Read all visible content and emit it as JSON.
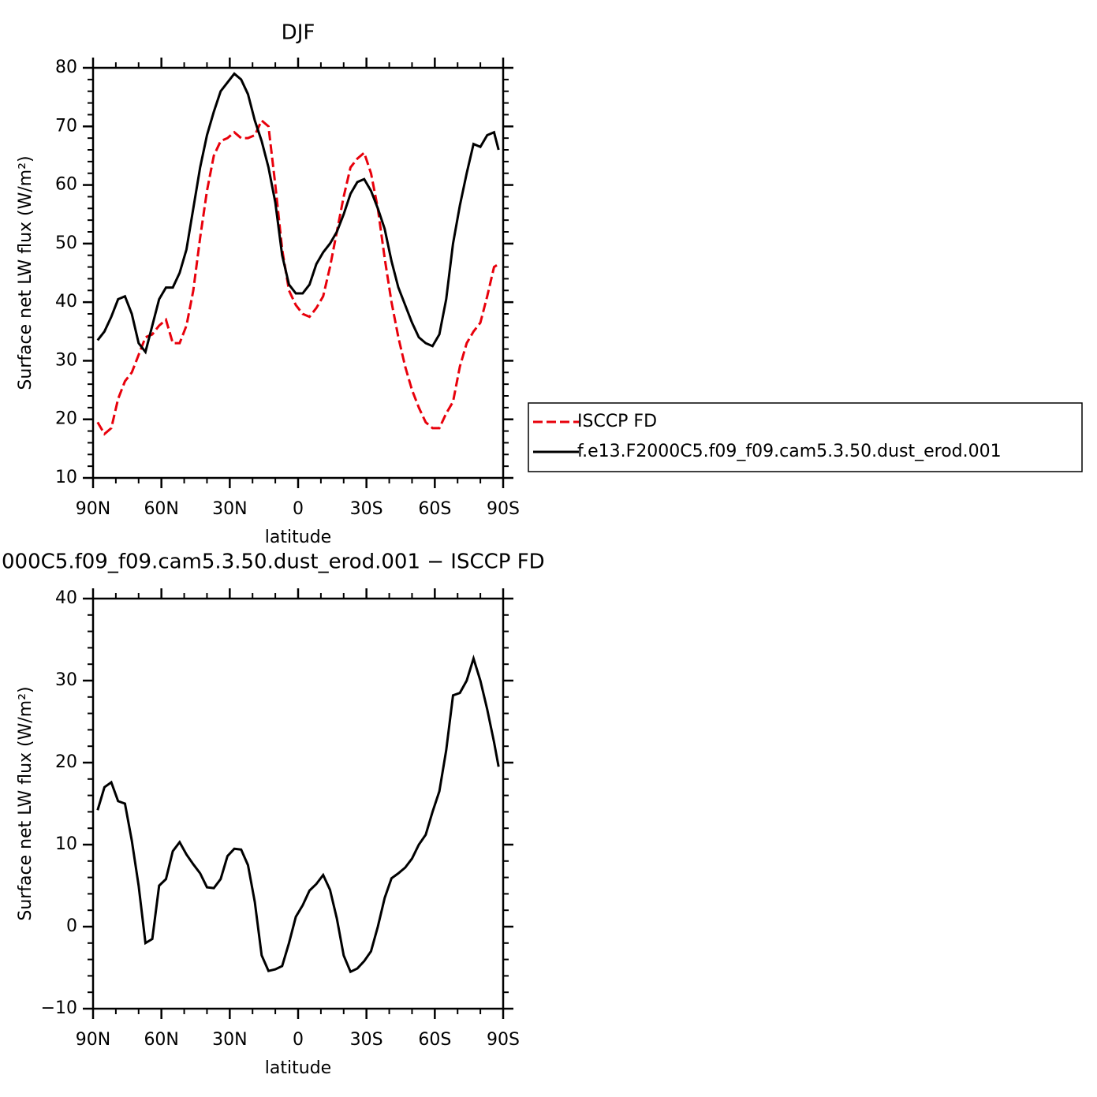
{
  "chart_data": [
    {
      "type": "line",
      "title": "DJF",
      "xlabel": "latitude",
      "ylabel": "Surface net LW flux (W/m²)",
      "x": [
        88,
        85,
        82,
        79,
        76,
        73,
        70,
        67,
        64,
        61,
        58,
        55,
        52,
        49,
        46,
        43,
        40,
        37,
        34,
        31,
        28,
        25,
        22,
        19,
        16,
        13,
        10,
        7,
        4,
        1,
        -2,
        -5,
        -8,
        -11,
        -14,
        -17,
        -20,
        -23,
        -26,
        -29,
        -32,
        -35,
        -38,
        -41,
        -44,
        -47,
        -50,
        -53,
        -56,
        -59,
        -62,
        -65,
        -68,
        -71,
        -74,
        -77,
        -80,
        -83,
        -86,
        -88
      ],
      "xlim": [
        90,
        -90
      ],
      "xticks": [
        {
          "value": 90,
          "label": "90N"
        },
        {
          "value": 60,
          "label": "60N"
        },
        {
          "value": 30,
          "label": "30N"
        },
        0,
        {
          "value": -30,
          "label": "30S"
        },
        {
          "value": -60,
          "label": "60S"
        },
        {
          "value": -90,
          "label": "90S"
        }
      ],
      "ylim": [
        10,
        80
      ],
      "yticks": [
        10,
        20,
        30,
        40,
        50,
        60,
        70,
        80
      ],
      "legend": "right",
      "series": [
        {
          "name": "ISCCP FD",
          "color": "#e8000b",
          "dashed": true,
          "values": [
            19.5,
            17.5,
            18.5,
            23.5,
            26.5,
            28,
            31,
            34,
            34.5,
            36,
            37,
            33,
            33,
            36,
            42,
            51,
            59,
            65,
            67.5,
            68,
            69,
            68,
            68,
            68.5,
            71,
            70,
            60,
            49,
            42,
            39.5,
            38,
            37.5,
            39,
            41,
            46,
            52,
            58,
            63,
            64.5,
            65.5,
            62,
            56,
            47.5,
            40,
            34,
            29,
            25,
            22,
            19.5,
            18.5,
            18.5,
            21,
            23,
            29,
            33,
            35,
            36.5,
            41,
            46,
            46.5
          ]
        },
        {
          "name": "f.e13.F2000C5.f09_f09.cam5.3.50.dust_erod.001",
          "color": "#000000",
          "dashed": false,
          "values": [
            33.5,
            35,
            37.5,
            40.5,
            41,
            38,
            33,
            31.5,
            36,
            40.5,
            42.5,
            42.5,
            45,
            49,
            56,
            63,
            68.5,
            72.5,
            76,
            77.5,
            79,
            78,
            75.5,
            71,
            67.5,
            63,
            57,
            48,
            43,
            41.5,
            41.5,
            43,
            46.5,
            48.5,
            50,
            52,
            55,
            58.5,
            60.5,
            61,
            59,
            56,
            52.5,
            47,
            42.5,
            39.5,
            36.5,
            34,
            33,
            32.5,
            34.5,
            40.5,
            50,
            56.5,
            62,
            67,
            66.5,
            68.5,
            69,
            66
          ]
        }
      ]
    },
    {
      "type": "line",
      "title": "000C5.f09_f09.cam5.3.50.dust_erod.001 − ISCCP FD",
      "xlabel": "latitude",
      "ylabel": "Surface net LW flux (W/m²)",
      "x": [
        88,
        85,
        82,
        79,
        76,
        73,
        70,
        67,
        64,
        61,
        58,
        55,
        52,
        49,
        46,
        43,
        40,
        37,
        34,
        31,
        28,
        25,
        22,
        19,
        16,
        13,
        10,
        7,
        4,
        1,
        -2,
        -5,
        -8,
        -11,
        -14,
        -17,
        -20,
        -23,
        -26,
        -29,
        -32,
        -35,
        -38,
        -41,
        -44,
        -47,
        -50,
        -53,
        -56,
        -59,
        -62,
        -65,
        -68,
        -71,
        -74,
        -77,
        -80,
        -83,
        -86,
        -88
      ],
      "xlim": [
        90,
        -90
      ],
      "xticks": [
        {
          "value": 90,
          "label": "90N"
        },
        {
          "value": 60,
          "label": "60N"
        },
        {
          "value": 30,
          "label": "30N"
        },
        0,
        {
          "value": -30,
          "label": "30S"
        },
        {
          "value": -60,
          "label": "60S"
        },
        {
          "value": -90,
          "label": "90S"
        }
      ],
      "ylim": [
        -10,
        40
      ],
      "yticks": [
        {
          "value": -10,
          "label": "−10"
        },
        0,
        10,
        20,
        30,
        40
      ],
      "series": [
        {
          "color": "#000000",
          "dashed": false,
          "values": [
            14.2,
            17,
            17.6,
            15.3,
            15,
            10.5,
            5,
            -2,
            -1.5,
            5,
            5.8,
            9.2,
            10.3,
            8.8,
            7.6,
            6.5,
            4.8,
            4.7,
            5.8,
            8.6,
            9.5,
            9.4,
            7.5,
            3,
            -3.5,
            -5.4,
            -5.2,
            -4.8,
            -2,
            1.2,
            2.6,
            4.4,
            5.2,
            6.3,
            4.5,
            1,
            -3.5,
            -5.5,
            -5.1,
            -4.2,
            -3,
            0,
            3.5,
            5.9,
            6.5,
            7.2,
            8.3,
            10,
            11.2,
            14,
            16.5,
            21.5,
            28.2,
            28.5,
            30,
            32.7,
            30,
            26.5,
            22.5,
            19.5
          ]
        }
      ]
    }
  ]
}
